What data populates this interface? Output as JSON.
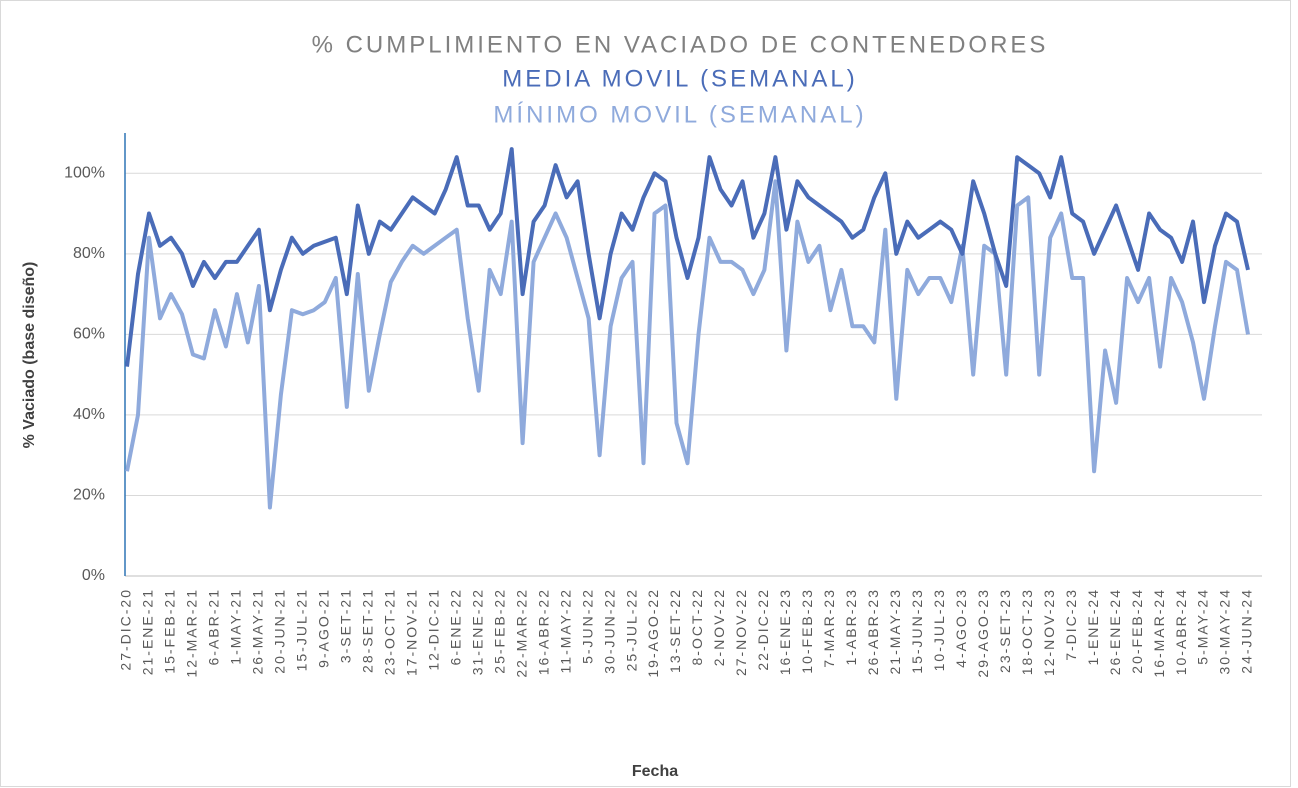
{
  "chart_data": {
    "type": "line",
    "title": "% CUMPLIMIENTO EN VACIADO DE CONTENEDORES",
    "x_label": "Fecha",
    "y_label": "% Vaciado (base diseño)",
    "categories": [
      "27-DIC-20",
      null,
      "21-ENE-21",
      null,
      "15-FEB-21",
      null,
      "12-MAR-21",
      null,
      "6-ABR-21",
      null,
      "1-MAY-21",
      null,
      "26-MAY-21",
      null,
      "20-JUN-21",
      null,
      "15-JUL-21",
      null,
      "9-AGO-21",
      null,
      "3-SET-21",
      null,
      "28-SET-21",
      null,
      "23-OCT-21",
      null,
      "17-NOV-21",
      null,
      "12-DIC-21",
      null,
      "6-ENE-22",
      null,
      "31-ENE-22",
      null,
      "25-FEB-22",
      null,
      "22-MAR-22",
      null,
      "16-ABR-22",
      null,
      "11-MAY-22",
      null,
      "5-JUN-22",
      null,
      "30-JUN-22",
      null,
      "25-JUL-22",
      null,
      "19-AGO-22",
      null,
      "13-SET-22",
      null,
      "8-OCT-22",
      null,
      "2-NOV-22",
      null,
      "27-NOV-22",
      null,
      "22-DIC-22",
      null,
      "16-ENE-23",
      null,
      "10-FEB-23",
      null,
      "7-MAR-23",
      null,
      "1-ABR-23",
      null,
      "26-ABR-23",
      null,
      "21-MAY-23",
      null,
      "15-JUN-23",
      null,
      "10-JUL-23",
      null,
      "4-AGO-23",
      null,
      "29-AGO-23",
      null,
      "23-SET-23",
      null,
      "18-OCT-23",
      null,
      "12-NOV-23",
      null,
      "7-DIC-23",
      null,
      "1-ENE-24",
      null,
      "26-ENE-24",
      null,
      "20-FEB-24",
      null,
      "16-MAR-24",
      null,
      "10-ABR-24",
      null,
      "5-MAY-24",
      null,
      "30-MAY-24",
      null,
      "24-JUN-24"
    ],
    "series": [
      {
        "name": "MEDIA MOVIL (SEMANAL)",
        "color": "#4a6cb8",
        "values": [
          52,
          75,
          90,
          82,
          84,
          80,
          72,
          78,
          74,
          78,
          78,
          82,
          86,
          66,
          76,
          84,
          80,
          82,
          83,
          84,
          70,
          92,
          80,
          88,
          86,
          90,
          94,
          92,
          90,
          96,
          104,
          92,
          92,
          86,
          90,
          106,
          70,
          88,
          92,
          102,
          94,
          98,
          80,
          64,
          80,
          90,
          86,
          94,
          100,
          98,
          84,
          74,
          84,
          104,
          96,
          92,
          98,
          84,
          90,
          104,
          86,
          98,
          94,
          92,
          90,
          88,
          84,
          86,
          94,
          100,
          80,
          88,
          84,
          86,
          88,
          86,
          80,
          98,
          90,
          80,
          72,
          104,
          102,
          100,
          94,
          104,
          90,
          88,
          80,
          86,
          92,
          84,
          76,
          90,
          86,
          84,
          78,
          88,
          68,
          82,
          90,
          88,
          76
        ]
      },
      {
        "name": "MÍNIMO MOVIL (SEMANAL)",
        "color": "#8faadc",
        "values": [
          26,
          40,
          84,
          64,
          70,
          65,
          55,
          54,
          66,
          57,
          70,
          58,
          72,
          17,
          45,
          66,
          65,
          66,
          68,
          74,
          42,
          75,
          46,
          60,
          73,
          78,
          82,
          80,
          82,
          84,
          86,
          64,
          46,
          76,
          70,
          88,
          33,
          78,
          84,
          90,
          84,
          74,
          64,
          30,
          62,
          74,
          78,
          28,
          90,
          92,
          38,
          28,
          60,
          84,
          78,
          78,
          76,
          70,
          76,
          98,
          56,
          88,
          78,
          82,
          66,
          76,
          62,
          62,
          58,
          86,
          44,
          76,
          70,
          74,
          74,
          68,
          82,
          50,
          82,
          80,
          50,
          92,
          94,
          50,
          84,
          90,
          74,
          74,
          26,
          56,
          43,
          74,
          68,
          74,
          52,
          74,
          68,
          58,
          44,
          62,
          78,
          76,
          60
        ]
      }
    ],
    "ylim": [
      0,
      110
    ],
    "yticks": [
      {
        "value": 0,
        "label": "0%"
      },
      {
        "value": 20,
        "label": "20%"
      },
      {
        "value": 40,
        "label": "40%"
      },
      {
        "value": 60,
        "label": "60%"
      },
      {
        "value": 80,
        "label": "80%"
      },
      {
        "value": 100,
        "label": "100%"
      }
    ],
    "grid": true
  }
}
